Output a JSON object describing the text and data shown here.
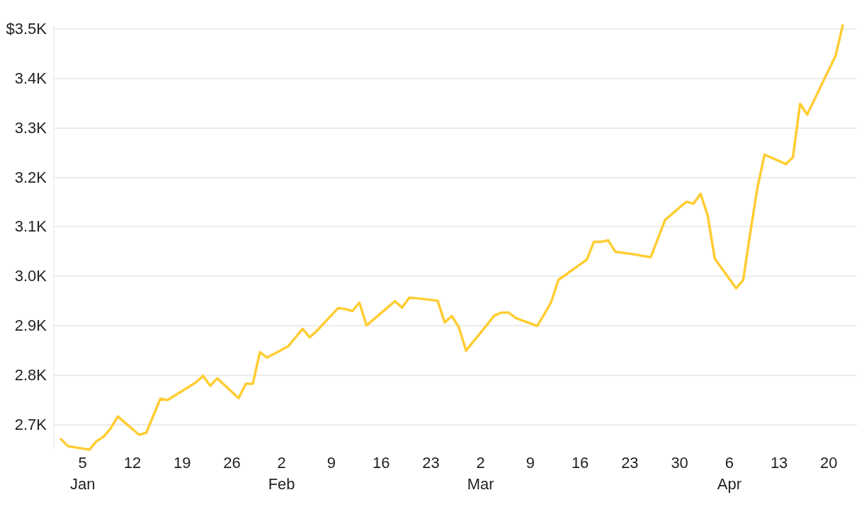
{
  "chart_data": {
    "type": "line",
    "color": "#ffcc33",
    "grid": "y",
    "line_style": "solid",
    "marker": "none",
    "x": [
      "--01-02",
      "--01-03",
      "--01-06",
      "--01-07",
      "--01-08",
      "--01-09",
      "--01-10",
      "--01-13",
      "--01-14",
      "--01-16",
      "--01-17",
      "--01-21",
      "--01-22",
      "--01-23",
      "--01-24",
      "--01-27",
      "--01-28",
      "--01-29",
      "--01-30",
      "--01-31",
      "--02-03",
      "--02-05",
      "--02-06",
      "--02-07",
      "--02-10",
      "--02-11",
      "--02-12",
      "--02-13",
      "--02-14",
      "--02-18",
      "--02-19",
      "--02-20",
      "--02-21",
      "--02-24",
      "--02-25",
      "--02-26",
      "--02-27",
      "--02-28",
      "--03-03",
      "--03-04",
      "--03-05",
      "--03-06",
      "--03-07",
      "--03-10",
      "--03-11",
      "--03-12",
      "--03-13",
      "--03-17",
      "--03-18",
      "--03-19",
      "--03-20",
      "--03-21",
      "--03-24",
      "--03-25",
      "--03-26",
      "--03-28",
      "--03-31",
      "--04-01",
      "--04-02",
      "--04-03",
      "--04-04",
      "--04-07",
      "--04-08",
      "--04-09",
      "--04-10",
      "--04-11",
      "--04-14",
      "--04-15",
      "--04-16",
      "--04-17",
      "--04-21",
      "--04-22"
    ],
    "values": [
      2671,
      2657,
      2650,
      2667,
      2676,
      2693,
      2717,
      2680,
      2684,
      2753,
      2750,
      2786,
      2799,
      2779,
      2794,
      2754,
      2783,
      2783,
      2847,
      2836,
      2859,
      2894,
      2877,
      2890,
      2936,
      2934,
      2930,
      2947,
      2901,
      2950,
      2937,
      2957,
      2956,
      2951,
      2907,
      2920,
      2897,
      2850,
      2903,
      2921,
      2927,
      2927,
      2916,
      2900,
      2923,
      2949,
      2993,
      3034,
      3070,
      3070,
      3073,
      3050,
      3044,
      3041,
      3039,
      3114,
      3151,
      3147,
      3167,
      3123,
      3036,
      2976,
      2993,
      3089,
      3179,
      3246,
      3227,
      3241,
      3349,
      3327,
      3446,
      3507
    ],
    "xlim": [
      "--01-01",
      "--04-24"
    ],
    "ylim": [
      2650,
      3507
    ],
    "xticks": [
      {
        "value": "--01-05",
        "label": "5\nJan"
      },
      {
        "value": "--01-12",
        "label": "12"
      },
      {
        "value": "--01-19",
        "label": "19"
      },
      {
        "value": "--01-26",
        "label": "26"
      },
      {
        "value": "--02-02",
        "label": "2\nFeb"
      },
      {
        "value": "--02-09",
        "label": "9"
      },
      {
        "value": "--02-16",
        "label": "16"
      },
      {
        "value": "--02-23",
        "label": "23"
      },
      {
        "value": "--03-02",
        "label": "2\nMar"
      },
      {
        "value": "--03-09",
        "label": "9"
      },
      {
        "value": "--03-16",
        "label": "16"
      },
      {
        "value": "--03-23",
        "label": "23"
      },
      {
        "value": "--03-30",
        "label": "30"
      },
      {
        "value": "--04-06",
        "label": "6\nApr"
      },
      {
        "value": "--04-13",
        "label": "13"
      },
      {
        "value": "--04-20",
        "label": "20"
      }
    ],
    "yticks": [
      {
        "value": 2700,
        "label": "2.7K"
      },
      {
        "value": 2800,
        "label": "2.8K"
      },
      {
        "value": 2900,
        "label": "2.9K"
      },
      {
        "value": 3000,
        "label": "3.0K"
      },
      {
        "value": 3100,
        "label": "3.1K"
      },
      {
        "value": 3200,
        "label": "3.2K"
      },
      {
        "value": 3300,
        "label": "3.3K"
      },
      {
        "value": 3400,
        "label": "3.4K"
      },
      {
        "value": 3500,
        "label": "$3.5K"
      }
    ]
  }
}
